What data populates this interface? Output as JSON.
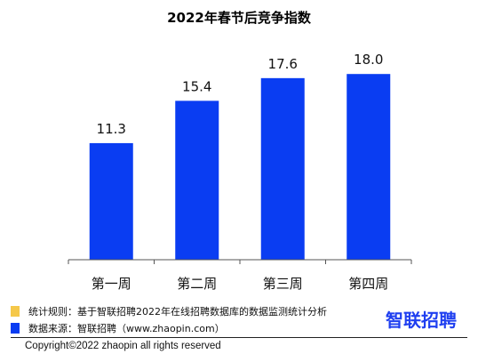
{
  "chart_data": {
    "type": "bar",
    "title": "2022年春节后竞争指数",
    "categories": [
      "第一周",
      "第二周",
      "第三周",
      "第四周"
    ],
    "values": [
      11.3,
      15.4,
      17.6,
      18.0
    ],
    "value_labels": [
      "11.3",
      "15.4",
      "17.6",
      "18.0"
    ],
    "ylim": [
      0,
      20
    ],
    "grid": false,
    "bar_color": "#0a3df2",
    "xlabel": "",
    "ylabel": ""
  },
  "notes": {
    "rule": "统计规则：基于智联招聘2022年在线招聘数据库的数据监测统计分析",
    "source": "数据来源：智联招聘（www.zhaopin.com）",
    "rule_color": "#f5c84a",
    "source_color": "#0a3df2"
  },
  "logo": {
    "text": "智联招聘",
    "color": "#1f3ff0"
  },
  "footer": {
    "copyright": "Copyright©2022 zhaopin all rights reserved"
  }
}
